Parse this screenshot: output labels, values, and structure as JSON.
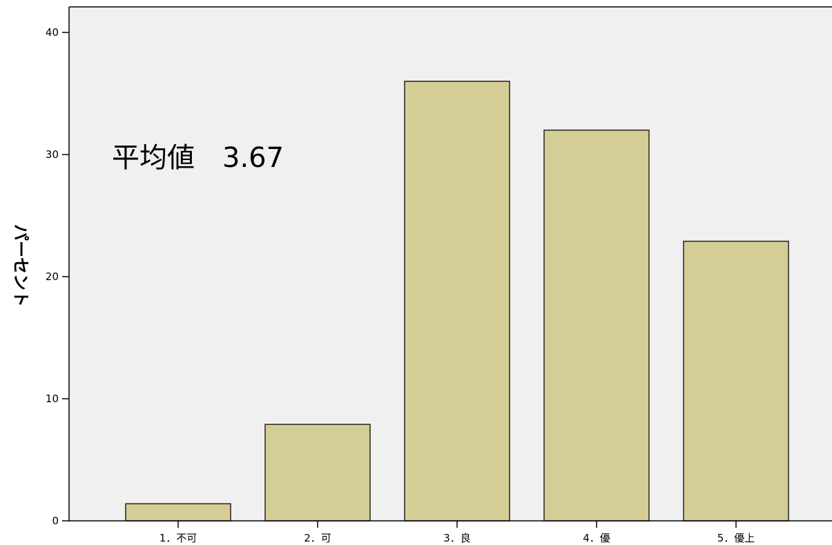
{
  "chart_data": {
    "type": "bar",
    "title": "",
    "xlabel": "",
    "ylabel": "パーセント",
    "categories": [
      "1．不可",
      "2．可",
      "3．良",
      "4．優",
      "5．優上"
    ],
    "values": [
      1.4,
      7.9,
      36.0,
      32.0,
      22.9
    ],
    "ylim": [
      0,
      42
    ],
    "yticks": [
      0,
      10,
      20,
      30,
      40
    ],
    "grid": false,
    "annotation": "平均値　3.67",
    "colors": {
      "bar_fill": "#d4cd96",
      "bar_stroke": "#222222",
      "plot_background": "#f0f0f0"
    }
  }
}
